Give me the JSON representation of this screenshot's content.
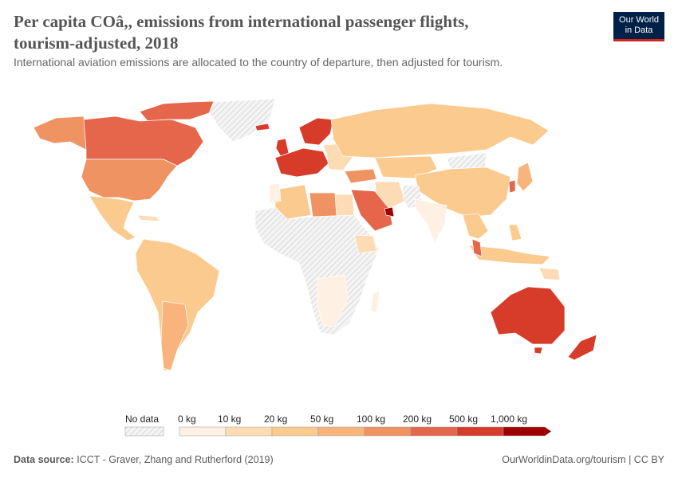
{
  "header": {
    "title": "Per capita COâ,, emissions from international passenger flights, tourism-adjusted, 2018",
    "subtitle": "International aviation emissions are allocated to the country of departure, then adjusted for tourism.",
    "logo_line1": "Our World",
    "logo_line2": "in Data"
  },
  "legend": {
    "no_data_label": "No data",
    "bins": [
      "0 kg",
      "10 kg",
      "20 kg",
      "50 kg",
      "100 kg",
      "200 kg",
      "500 kg",
      "1,000 kg"
    ],
    "colors": [
      "#fef0e2",
      "#fddcb5",
      "#fbca8e",
      "#f8b47c",
      "#f09363",
      "#e5664a",
      "#d73b2a",
      "#9e0000"
    ]
  },
  "map_data": {
    "metric": "kg CO2 per capita",
    "regions": [
      {
        "name": "Canada",
        "bin": 5
      },
      {
        "name": "United States",
        "bin": 4
      },
      {
        "name": "Mexico",
        "bin": 2
      },
      {
        "name": "South America",
        "bin": 2
      },
      {
        "name": "Europe",
        "bin": 5
      },
      {
        "name": "Russia",
        "bin": 3
      },
      {
        "name": "China",
        "bin": 3
      },
      {
        "name": "Middle East",
        "bin": 5
      },
      {
        "name": "India",
        "bin": 0
      },
      {
        "name": "Australia",
        "bin": 6
      },
      {
        "name": "New Zealand",
        "bin": 6
      }
    ]
  },
  "footer": {
    "source_label": "Data source:",
    "source_text": "ICCT - Graver, Zhang and Rutherford (2019)",
    "url_text": "OurWorldinData.org/tourism | CC BY"
  }
}
